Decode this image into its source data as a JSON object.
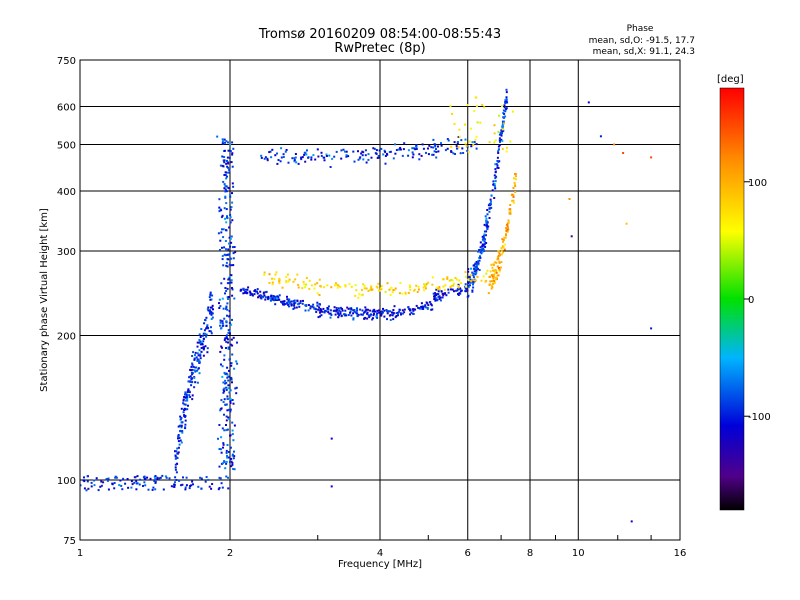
{
  "chart_data": {
    "type": "scatter",
    "title": "Tromsø 20160209 08:54:00-08:55:43",
    "subtitle": "RwPretec (8p)",
    "xlabel": "Frequency [MHz]",
    "ylabel": "Stationary phase Virtual Height [km]",
    "x_scale": "log",
    "y_scale": "log",
    "xlim": [
      1,
      16
    ],
    "ylim": [
      75,
      750
    ],
    "x_ticks": [
      {
        "value": 1,
        "label": "1"
      },
      {
        "value": 2,
        "label": "2"
      },
      {
        "value": 4,
        "label": "4"
      },
      {
        "value": 6,
        "label": "6"
      },
      {
        "value": 8,
        "label": "8"
      },
      {
        "value": 10,
        "label": "10"
      },
      {
        "value": 16,
        "label": "16"
      }
    ],
    "y_ticks": [
      {
        "value": 75,
        "label": "75"
      },
      {
        "value": 100,
        "label": "100"
      },
      {
        "value": 200,
        "label": "200"
      },
      {
        "value": 300,
        "label": "300"
      },
      {
        "value": 400,
        "label": "400"
      },
      {
        "value": 500,
        "label": "500"
      },
      {
        "value": 600,
        "label": "600"
      },
      {
        "value": 750,
        "label": "750"
      }
    ],
    "grid": true,
    "info_box": {
      "heading": "Phase",
      "line_o": "mean, sd,O: -91.5, 17.7",
      "line_x": "mean, sd,X: 91.1, 24.3"
    },
    "colorbar": {
      "unit_label": "[deg]",
      "range": [
        -180,
        180
      ],
      "ticks": [
        {
          "value": 100,
          "label": "100"
        },
        {
          "value": 0,
          "label": "0"
        },
        {
          "value": -100,
          "label": "-100"
        }
      ],
      "colormap": "rainbow"
    },
    "series": [
      {
        "description": "ordinary-mode traces (mostly blue, phase around -90 deg)",
        "segments": [
          {
            "kind": "Es/E",
            "f_range": [
              1.0,
              2.0
            ],
            "h_range": [
              95,
              102
            ],
            "phase": -95,
            "n": 120
          },
          {
            "kind": "E-cusp",
            "f_range": [
              1.55,
              1.85
            ],
            "h_range": [
              102,
              230
            ],
            "phase": -95,
            "n": 220
          },
          {
            "kind": "F-cusp",
            "f_range": [
              1.85,
              2.1
            ],
            "h_range": [
              105,
              520
            ],
            "phase": -92,
            "n": 330
          },
          {
            "kind": "F-trace",
            "f_range": [
              2.1,
              6.0
            ],
            "h_range": [
              222,
              255
            ],
            "phase": -100,
            "n": 420
          },
          {
            "kind": "F-rise",
            "f_range": [
              6.0,
              7.2
            ],
            "h_range": [
              255,
              640
            ],
            "phase": -90,
            "n": 220
          },
          {
            "kind": "F-multihop",
            "f_range": [
              2.3,
              6.3
            ],
            "h_range": [
              450,
              520
            ],
            "phase": -95,
            "n": 180
          }
        ]
      },
      {
        "description": "extraordinary-mode traces (green-yellow-red, phase around +90 deg)",
        "segments": [
          {
            "kind": "X-trace",
            "f_range": [
              2.3,
              6.6
            ],
            "h_range": [
              245,
              275
            ],
            "phase": 80,
            "n": 160
          },
          {
            "kind": "X-rise",
            "f_range": [
              6.6,
              7.5
            ],
            "h_range": [
              260,
              430
            ],
            "phase": 100,
            "n": 120
          },
          {
            "kind": "X-multihop",
            "f_range": [
              5.4,
              7.4
            ],
            "h_range": [
              480,
              640
            ],
            "phase": 70,
            "n": 40
          }
        ]
      }
    ],
    "outliers": [
      {
        "f": 10.5,
        "h": 612,
        "phase": -110
      },
      {
        "f": 11.1,
        "h": 520,
        "phase": -100
      },
      {
        "f": 11.8,
        "h": 500,
        "phase": 120
      },
      {
        "f": 12.3,
        "h": 480,
        "phase": 150
      },
      {
        "f": 14.0,
        "h": 470,
        "phase": 150
      },
      {
        "f": 12.5,
        "h": 342,
        "phase": 90
      },
      {
        "f": 9.7,
        "h": 322,
        "phase": -140
      },
      {
        "f": 14.0,
        "h": 207,
        "phase": -100
      },
      {
        "f": 12.8,
        "h": 82,
        "phase": -120
      },
      {
        "f": 3.2,
        "h": 97,
        "phase": -110
      },
      {
        "f": 3.2,
        "h": 122,
        "phase": -110
      },
      {
        "f": 9.6,
        "h": 385,
        "phase": 120
      }
    ]
  }
}
